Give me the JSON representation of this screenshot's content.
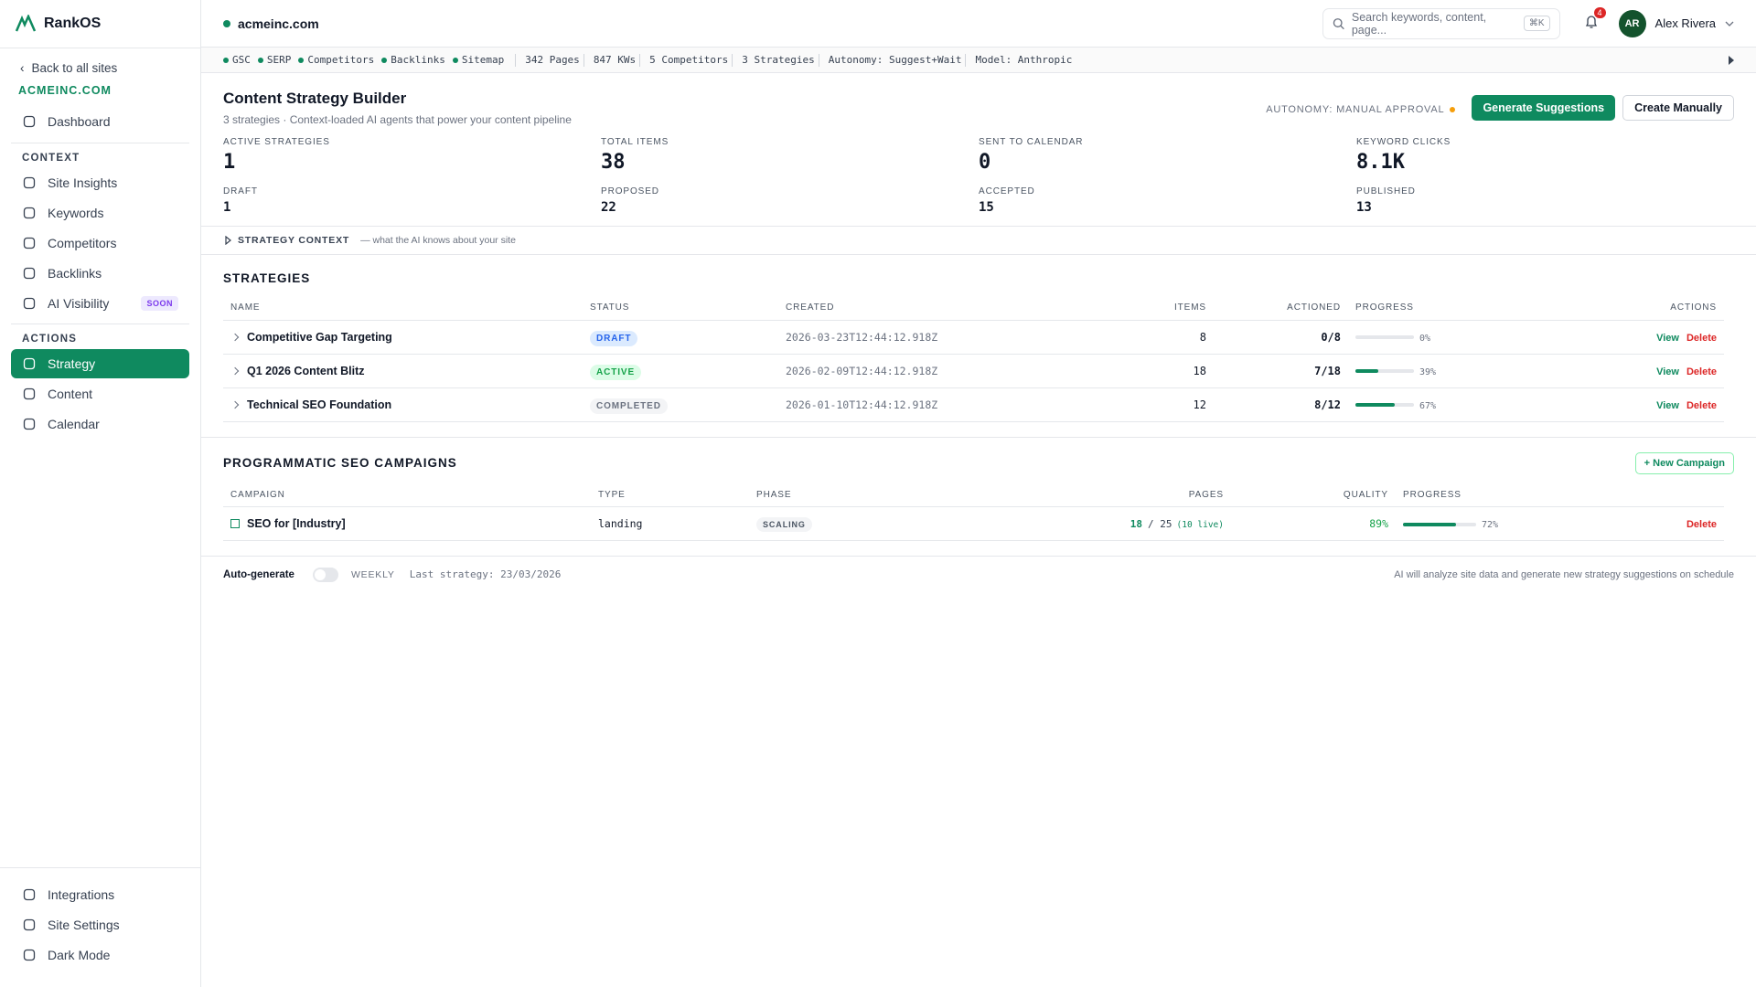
{
  "sidebar": {
    "brand": "RankOS",
    "back": "Back to all sites",
    "site": "ACMEINC.COM",
    "top_items": [
      {
        "label": "Dashboard"
      }
    ],
    "sections": [
      {
        "title": "CONTEXT",
        "items": [
          {
            "label": "Site Insights"
          },
          {
            "label": "Keywords"
          },
          {
            "label": "Competitors"
          },
          {
            "label": "Backlinks"
          },
          {
            "label": "AI Visibility",
            "badge": "SOON"
          }
        ]
      },
      {
        "title": "ACTIONS",
        "items": [
          {
            "label": "Strategy",
            "active": true
          },
          {
            "label": "Content"
          },
          {
            "label": "Calendar"
          }
        ]
      }
    ],
    "bottom_items": [
      {
        "label": "Integrations"
      },
      {
        "label": "Site Settings"
      },
      {
        "label": "Dark Mode"
      }
    ]
  },
  "header": {
    "site": "acmeinc.com",
    "search_placeholder": "Search keywords, content, page...",
    "shortcut": "⌘K",
    "notifications": 4,
    "avatar": "AR",
    "user": "Alex Rivera"
  },
  "status_bar": {
    "sources": [
      "GSC",
      "SERP",
      "Competitors",
      "Backlinks",
      "Sitemap"
    ],
    "counts": [
      "342 Pages",
      "847 KWs",
      "5 Competitors",
      "3 Strategies"
    ],
    "settings": [
      "Autonomy: Suggest+Wait",
      "Model: Anthropic"
    ]
  },
  "page": {
    "title": "Content Strategy Builder",
    "subtitle": "3 strategies · Context-loaded AI agents that power your content pipeline",
    "autonomy": "AUTONOMY: MANUAL APPROVAL",
    "primary_button": "Generate Suggestions",
    "secondary_button": "Create Manually",
    "stats": [
      {
        "label": "ACTIVE STRATEGIES",
        "value": "1"
      },
      {
        "label": "TOTAL ITEMS",
        "value": "38"
      },
      {
        "label": "SENT TO CALENDAR",
        "value": "0"
      },
      {
        "label": "KEYWORD CLICKS",
        "value": "8.1K"
      }
    ],
    "sub_stats": [
      {
        "label": "DRAFT",
        "value": "1"
      },
      {
        "label": "PROPOSED",
        "value": "22"
      },
      {
        "label": "ACCEPTED",
        "value": "15"
      },
      {
        "label": "PUBLISHED",
        "value": "13"
      }
    ]
  },
  "strategy_context": {
    "label": "STRATEGY CONTEXT",
    "note": "— what the AI knows about your site"
  },
  "strategies": {
    "title": "STRATEGIES",
    "columns": [
      "NAME",
      "STATUS",
      "CREATED",
      "ITEMS",
      "ACTIONED",
      "PROGRESS",
      "ACTIONS"
    ],
    "rows": [
      {
        "name": "Competitive Gap Targeting",
        "status": "DRAFT",
        "status_color": "#2563eb",
        "status_bg": "#dbeafe",
        "created": "2026-03-23T12:44:12.918Z",
        "items": "8",
        "actioned": "0/8",
        "progress": 0,
        "progress_label": "0%",
        "view": "View",
        "delete": "Delete"
      },
      {
        "name": "Q1 2026 Content Blitz",
        "status": "ACTIVE",
        "status_color": "#16a34a",
        "status_bg": "#dcfce7",
        "created": "2026-02-09T12:44:12.918Z",
        "items": "18",
        "actioned": "7/18",
        "progress": 39,
        "progress_label": "39%",
        "view": "View",
        "delete": "Delete"
      },
      {
        "name": "Technical SEO Foundation",
        "status": "COMPLETED",
        "status_color": "#6b7280",
        "status_bg": "#f3f4f6",
        "created": "2026-01-10T12:44:12.918Z",
        "items": "12",
        "actioned": "8/12",
        "progress": 67,
        "progress_label": "67%",
        "view": "View",
        "delete": "Delete"
      }
    ]
  },
  "campaigns": {
    "title": "PROGRAMMATIC SEO CAMPAIGNS",
    "new_button": "+ New Campaign",
    "columns": [
      "CAMPAIGN",
      "TYPE",
      "PHASE",
      "PAGES",
      "QUALITY",
      "PROGRESS"
    ],
    "rows": [
      {
        "name": "SEO for [Industry]",
        "type": "landing",
        "phase": "SCALING",
        "pages_done": "18",
        "pages_total": "/ 25",
        "pages_live": "(10 live)",
        "quality": "89%",
        "progress": 72,
        "progress_label": "72%",
        "delete": "Delete"
      }
    ]
  },
  "footer": {
    "label": "Auto-generate",
    "frequency": "WEEKLY",
    "last": "Last strategy: 23/03/2026",
    "note": "AI will analyze site data and generate new strategy suggestions on schedule"
  }
}
